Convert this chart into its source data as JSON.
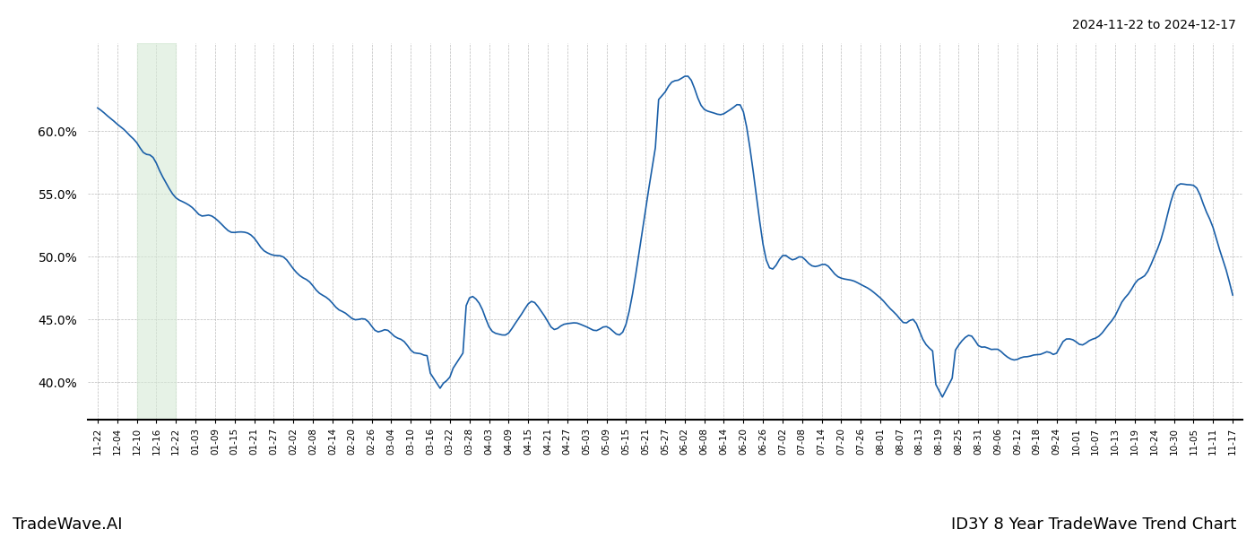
{
  "title_top_right": "2024-11-22 to 2024-12-17",
  "title_bottom_left": "TradeWave.AI",
  "title_bottom_right": "ID3Y 8 Year TradeWave Trend Chart",
  "line_color": "#1a5fa8",
  "line_width": 1.2,
  "shade_color": "#d6ead6",
  "shade_alpha": 0.6,
  "ylim": [
    0.37,
    0.67
  ],
  "yticks": [
    0.4,
    0.45,
    0.5,
    0.55,
    0.6
  ],
  "background_color": "#ffffff",
  "grid_color": "#bbbbbb",
  "x_labels": [
    "11-22",
    "12-04",
    "12-10",
    "12-16",
    "12-22",
    "01-03",
    "01-09",
    "01-15",
    "01-21",
    "01-27",
    "02-02",
    "02-08",
    "02-14",
    "02-20",
    "02-26",
    "03-04",
    "03-10",
    "03-16",
    "03-22",
    "03-28",
    "04-03",
    "04-09",
    "04-15",
    "04-21",
    "04-27",
    "05-03",
    "05-09",
    "05-15",
    "05-21",
    "05-27",
    "06-02",
    "06-08",
    "06-14",
    "06-20",
    "06-26",
    "07-02",
    "07-08",
    "07-14",
    "07-20",
    "07-26",
    "08-01",
    "08-07",
    "08-13",
    "08-19",
    "08-25",
    "08-31",
    "09-06",
    "09-12",
    "09-18",
    "09-24",
    "10-01",
    "10-07",
    "10-13",
    "10-19",
    "10-24",
    "10-30",
    "11-05",
    "11-11",
    "11-17"
  ]
}
